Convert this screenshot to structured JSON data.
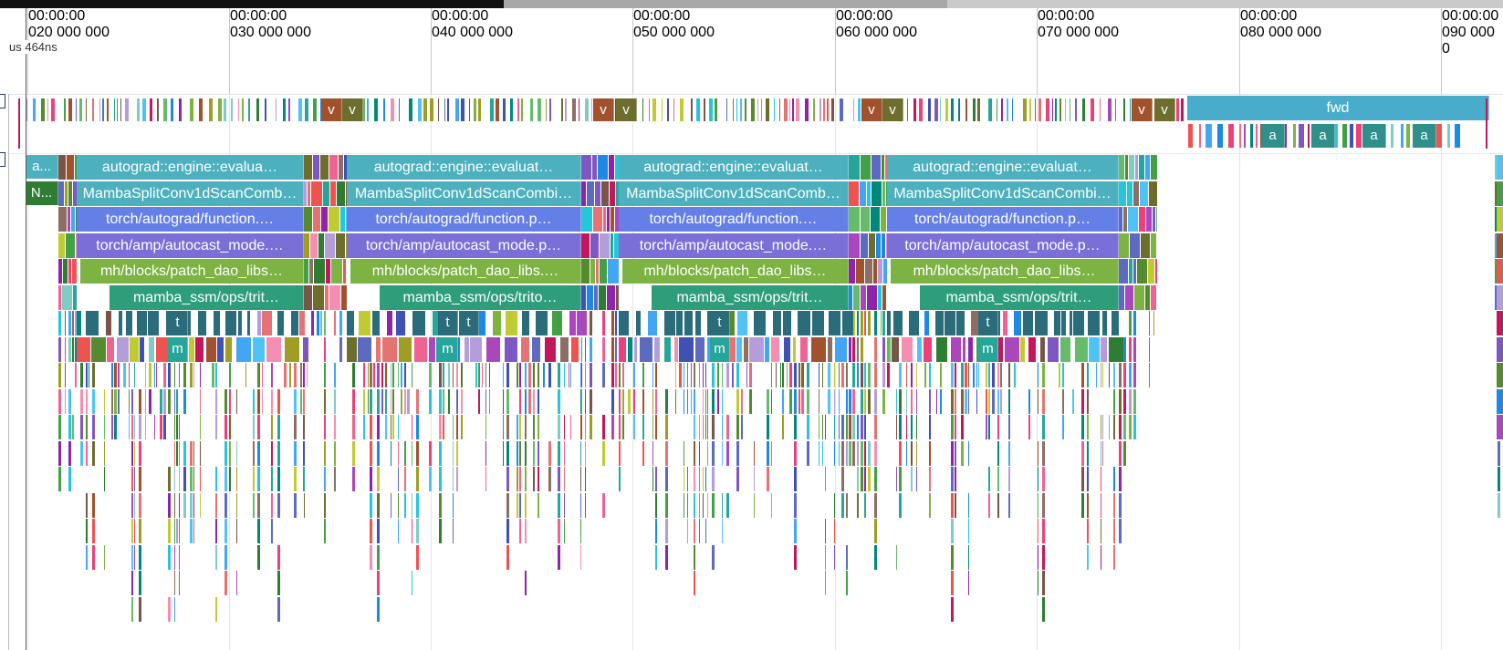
{
  "minimap": {
    "segments_colors": [
      "#111111",
      "#a8a8a8",
      "#cacaca"
    ]
  },
  "ruler": {
    "ticks": [
      {
        "line1": "00:00:00",
        "line2": "020 000 000"
      },
      {
        "line1": "00:00:00",
        "line2": "030 000 000"
      },
      {
        "line1": "00:00:00",
        "line2": "040 000 000"
      },
      {
        "line1": "00:00:00",
        "line2": "050 000 000"
      },
      {
        "line1": "00:00:00",
        "line2": "060 000 000"
      },
      {
        "line1": "00:00:00",
        "line2": "070 000 000"
      },
      {
        "line1": "00:00:00",
        "line2": "080 000 000"
      },
      {
        "line1": "00:00:00",
        "line2": "090 000 0"
      }
    ],
    "cursor_label": "us 464ns"
  },
  "track1": {
    "v_labels": [
      "v",
      "v",
      "v",
      "v",
      "v",
      "v",
      "v",
      "v"
    ],
    "fwd_label": "fwd",
    "a_labels": [
      "a",
      "a",
      "a",
      "a"
    ]
  },
  "track2": {
    "left_labels": [
      "a...",
      "N..."
    ],
    "blocks": [
      {
        "rows": [
          "autograd::engine::evalua…",
          "MambaSplitConv1dScanComb…",
          "torch/autograd/function.…",
          "torch/amp/autocast_mode.…",
          "mh/blocks/patch_dao_libs…",
          "mamba_ssm/ops/trit…"
        ],
        "t": [
          "t"
        ],
        "m": "m"
      },
      {
        "rows": [
          "autograd::engine::evaluat…",
          "MambaSplitConv1dScanCombi…",
          "torch/autograd/function.p…",
          "torch/amp/autocast_mode.p…",
          "mh/blocks/patch_dao_libs.…",
          "mamba_ssm/ops/trito…"
        ],
        "t": [
          "t",
          "t"
        ],
        "m": "m"
      },
      {
        "rows": [
          "autograd::engine::evaluat…",
          "MambaSplitConv1dScanComb…",
          "torch/autograd/function.…",
          "torch/amp/autocast_mode.…",
          "mh/blocks/patch_dao_libs…",
          "mamba_ssm/ops/trit…"
        ],
        "t": [
          "t"
        ],
        "m": "m"
      },
      {
        "rows": [
          "autograd::engine::evaluat…",
          "MambaSplitConv1dScanCombi…",
          "torch/autograd/function.p…",
          "torch/amp/autocast_mode.p…",
          "mh/blocks/patch_dao_libs…",
          "mamba_ssm/ops/trit…"
        ],
        "t": [
          "t"
        ],
        "m": "m"
      }
    ]
  },
  "colors": {
    "teal": "#4db0be",
    "teal_dark": "#2f8f8a",
    "blue": "#6480e6",
    "purple": "#7a6fd6",
    "green": "#7cb342",
    "sea_green": "#2e9e7a",
    "dark_slate": "#2b6c7a",
    "track_blue": "#4aaccb",
    "palette": [
      "#c2185b",
      "#f06292",
      "#8e24aa",
      "#ab47bc",
      "#5c6bc0",
      "#42a5f5",
      "#4fc3f7",
      "#26a69a",
      "#43a047",
      "#7cb342",
      "#c0ca33",
      "#8d6e63",
      "#a0522d",
      "#6d6d2e",
      "#3f51b5",
      "#2e7d32",
      "#e57373",
      "#f48fb1",
      "#b39ddb",
      "#80cbc4",
      "#1e88e5",
      "#00897b",
      "#558b2f",
      "#9e9d24",
      "#795548",
      "#ef5350",
      "#ec407a",
      "#7e57c2",
      "#26c6da",
      "#66bb6a"
    ]
  }
}
